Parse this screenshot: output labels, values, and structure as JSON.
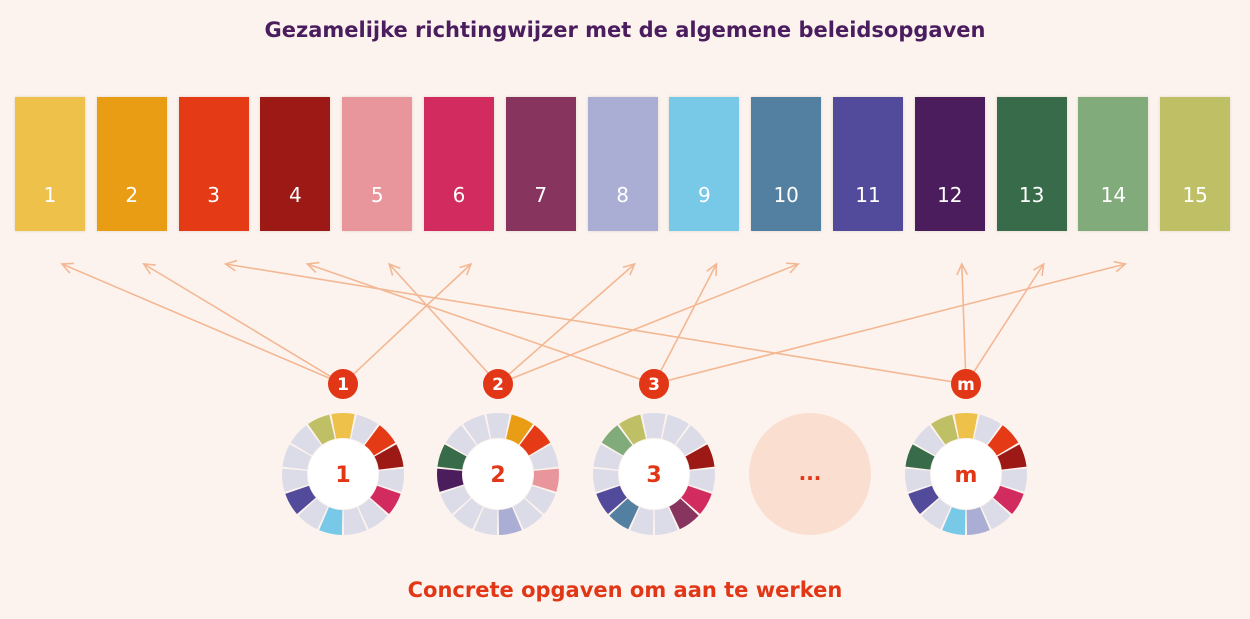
{
  "title": "Gezamelijke richtingwijzer met de algemene beleidsopgaven",
  "footer": "Concrete opgaven om aan te werken",
  "colors": {
    "background": "#fdf3ee",
    "arrow": "#f3b893",
    "badge": "#e23717",
    "ring_inactive": "#dcdbe8",
    "ellipsis_circle": "#fadfd0"
  },
  "goals": [
    {
      "label": "1",
      "color": "#eec24a"
    },
    {
      "label": "2",
      "color": "#e99d14"
    },
    {
      "label": "3",
      "color": "#e43a16"
    },
    {
      "label": "4",
      "color": "#9c1916"
    },
    {
      "label": "5",
      "color": "#e8959c"
    },
    {
      "label": "6",
      "color": "#d22b60"
    },
    {
      "label": "7",
      "color": "#87345f"
    },
    {
      "label": "8",
      "color": "#aaadd4"
    },
    {
      "label": "9",
      "color": "#77c9e7"
    },
    {
      "label": "10",
      "color": "#537fa0"
    },
    {
      "label": "11",
      "color": "#524a9b"
    },
    {
      "label": "12",
      "color": "#4b1d5c"
    },
    {
      "label": "13",
      "color": "#386b4a"
    },
    {
      "label": "14",
      "color": "#82ab7c"
    },
    {
      "label": "15",
      "color": "#bfc065"
    }
  ],
  "tasks": [
    {
      "label": "1",
      "badge": "1",
      "active": [
        15,
        1,
        3,
        4,
        6,
        9,
        11
      ],
      "targets": [
        1,
        2,
        6
      ]
    },
    {
      "label": "2",
      "badge": "2",
      "active": [
        2,
        3,
        5,
        8,
        12,
        13
      ],
      "targets": [
        5,
        8,
        10
      ]
    },
    {
      "label": "3",
      "badge": "3",
      "active": [
        15,
        4,
        6,
        7,
        10,
        11,
        14
      ],
      "targets": [
        4,
        9,
        14
      ]
    },
    {
      "label": "...",
      "badge": ""
    },
    {
      "label": "m",
      "badge": "m",
      "active": [
        15,
        1,
        3,
        4,
        6,
        8,
        9,
        11,
        13
      ],
      "targets": [
        3,
        12,
        13
      ]
    }
  ]
}
